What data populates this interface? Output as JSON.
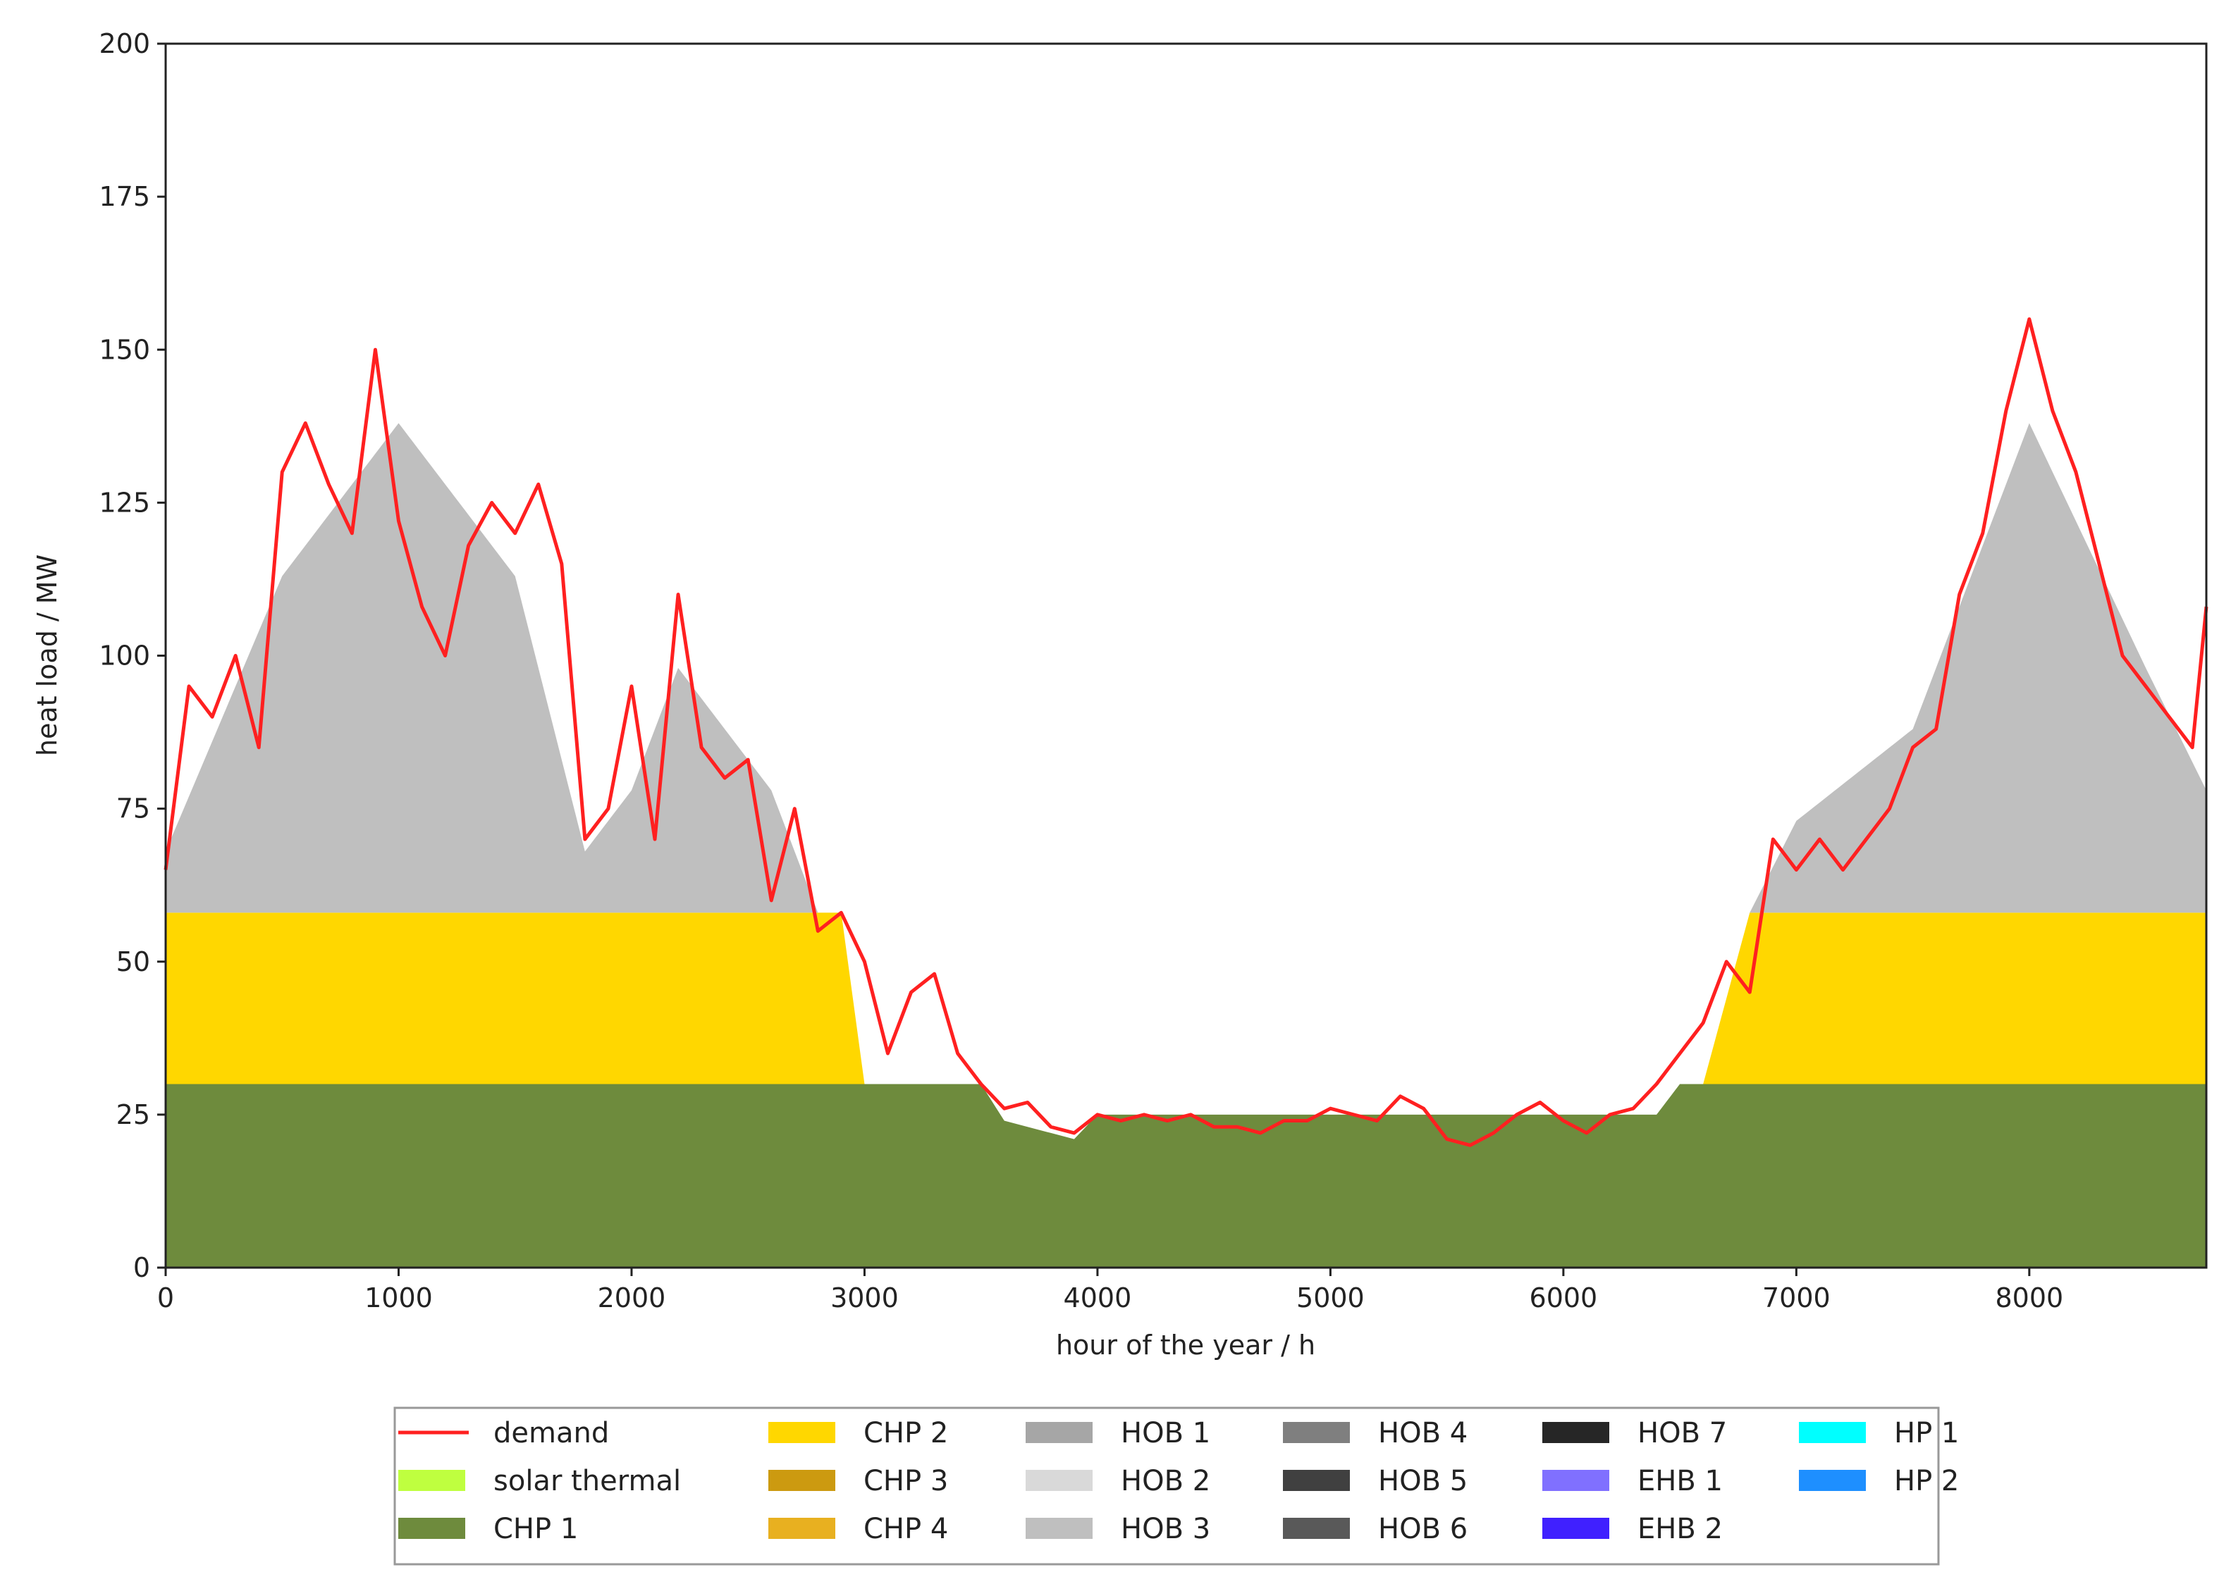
{
  "chart_data": {
    "type": "area",
    "title": "",
    "xlabel": "hour of the year / h",
    "ylabel": "heat load / MW",
    "xlim": [
      0,
      8760
    ],
    "ylim": [
      0,
      200
    ],
    "x_ticks": [
      0,
      1000,
      2000,
      3000,
      4000,
      5000,
      6000,
      7000,
      8000
    ],
    "y_ticks": [
      0,
      25,
      50,
      75,
      100,
      125,
      150,
      175,
      200
    ],
    "grid": false,
    "legend_position": "bottom-center",
    "legend": [
      {
        "label": "demand",
        "color": "#ff2020",
        "kind": "line"
      },
      {
        "label": "CHP 2",
        "color": "#ffd700",
        "kind": "patch"
      },
      {
        "label": "HOB 1",
        "color": "#a6a6a6",
        "kind": "patch"
      },
      {
        "label": "HOB 4",
        "color": "#7f7f7f",
        "kind": "patch"
      },
      {
        "label": "HOB 7",
        "color": "#262626",
        "kind": "patch"
      },
      {
        "label": "HP 1",
        "color": "#00ffff",
        "kind": "patch"
      },
      {
        "label": "solar thermal",
        "color": "#bfff3f",
        "kind": "patch"
      },
      {
        "label": "CHP 3",
        "color": "#cc9a10",
        "kind": "patch"
      },
      {
        "label": "HOB 2",
        "color": "#d9d9d9",
        "kind": "patch"
      },
      {
        "label": "HOB 5",
        "color": "#404040",
        "kind": "patch"
      },
      {
        "label": "EHB 1",
        "color": "#8070ff",
        "kind": "patch"
      },
      {
        "label": "HP 2",
        "color": "#1e8fff",
        "kind": "patch"
      },
      {
        "label": "CHP 1",
        "color": "#6e8b3d",
        "kind": "patch"
      },
      {
        "label": "CHP 4",
        "color": "#e8b020",
        "kind": "patch"
      },
      {
        "label": "HOB 3",
        "color": "#bfbfbf",
        "kind": "patch"
      },
      {
        "label": "HOB 6",
        "color": "#595959",
        "kind": "patch"
      },
      {
        "label": "EHB 2",
        "color": "#4020ff",
        "kind": "patch"
      }
    ],
    "series": [
      {
        "name": "demand",
        "color": "#ff2020",
        "x": [
          0,
          100,
          200,
          300,
          400,
          500,
          600,
          700,
          800,
          900,
          1000,
          1100,
          1200,
          1300,
          1400,
          1500,
          1600,
          1700,
          1800,
          1900,
          2000,
          2100,
          2200,
          2300,
          2400,
          2500,
          2600,
          2700,
          2800,
          2900,
          3000,
          3100,
          3200,
          3300,
          3400,
          3500,
          3600,
          3700,
          3800,
          3900,
          4000,
          4100,
          4200,
          4300,
          4400,
          4500,
          4600,
          4700,
          4800,
          4900,
          5000,
          5100,
          5200,
          5300,
          5400,
          5500,
          5600,
          5700,
          5800,
          5900,
          6000,
          6100,
          6200,
          6300,
          6400,
          6500,
          6600,
          6700,
          6800,
          6900,
          7000,
          7100,
          7200,
          7300,
          7400,
          7500,
          7600,
          7700,
          7800,
          7900,
          8000,
          8100,
          8200,
          8300,
          8400,
          8500,
          8600,
          8700,
          8760
        ],
        "values": [
          65,
          95,
          90,
          100,
          85,
          130,
          138,
          128,
          120,
          150,
          122,
          108,
          100,
          118,
          125,
          120,
          128,
          115,
          70,
          75,
          95,
          70,
          110,
          85,
          80,
          83,
          60,
          75,
          55,
          58,
          50,
          35,
          45,
          48,
          35,
          30,
          26,
          27,
          23,
          22,
          25,
          24,
          25,
          24,
          25,
          23,
          23,
          22,
          24,
          24,
          26,
          25,
          24,
          28,
          26,
          21,
          20,
          22,
          25,
          27,
          24,
          22,
          25,
          26,
          30,
          35,
          40,
          50,
          45,
          70,
          65,
          70,
          65,
          70,
          75,
          85,
          88,
          110,
          120,
          140,
          155,
          140,
          130,
          115,
          100,
          95,
          90,
          85,
          108
        ]
      },
      {
        "name": "CHP 1",
        "color": "#6e8b3d",
        "x": [
          0,
          3500,
          3600,
          3900,
          4000,
          6400,
          6500,
          8760
        ],
        "values": [
          30,
          30,
          24,
          21,
          25,
          25,
          30,
          30
        ]
      },
      {
        "name": "CHP 2",
        "color": "#ffd700",
        "x": [
          0,
          1800,
          1850,
          2900,
          3000,
          6600,
          6800,
          8760
        ],
        "values": [
          28,
          28,
          28,
          28,
          0,
          0,
          28,
          28
        ]
      },
      {
        "name": "HOB 3",
        "color": "#bfbfbf",
        "x": [
          0,
          500,
          1000,
          1500,
          1800,
          2000,
          2200,
          2600,
          2800,
          6800,
          7000,
          7500,
          8000,
          8500,
          8760
        ],
        "values": [
          10,
          55,
          80,
          55,
          10,
          20,
          40,
          20,
          0,
          0,
          15,
          30,
          80,
          40,
          20
        ]
      }
    ]
  }
}
